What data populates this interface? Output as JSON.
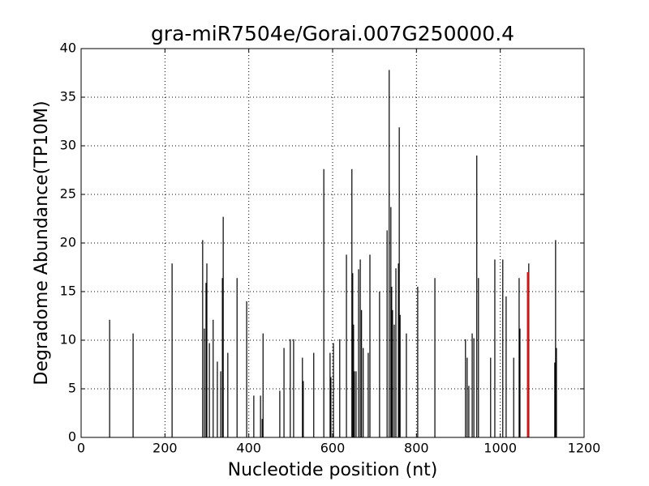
{
  "chart_data": {
    "type": "spike",
    "title": "gra-miR7504e/Gorai.007G250000.4",
    "xlabel": "Nucleotide position (nt)",
    "ylabel": "Degradome Abundance(TP10M)",
    "x": [
      68,
      124,
      217,
      290,
      294,
      298,
      300,
      306,
      315,
      325,
      333,
      337,
      339,
      350,
      372,
      395,
      412,
      428,
      432,
      434,
      474,
      484,
      499,
      507,
      528,
      530,
      555,
      579,
      594,
      596,
      602,
      617,
      633,
      646,
      648,
      650,
      652,
      656,
      662,
      666,
      669,
      673,
      685,
      689,
      712,
      730,
      735,
      739,
      741,
      743,
      747,
      751,
      757,
      759,
      761,
      776,
      803,
      844,
      917,
      921,
      925,
      933,
      937,
      944,
      948,
      977,
      987,
      1006,
      1014,
      1032,
      1045,
      1047,
      1068,
      1130,
      1132,
      1134
    ],
    "values": [
      12.1,
      10.7,
      17.9,
      20.3,
      11.2,
      15.9,
      17.9,
      9.7,
      12.1,
      7.8,
      6.8,
      16.4,
      22.7,
      8.7,
      16.4,
      14.0,
      4.3,
      4.3,
      1.9,
      10.7,
      4.8,
      9.2,
      10.1,
      10.1,
      8.2,
      5.8,
      8.7,
      27.6,
      8.7,
      6.2,
      9.7,
      10.1,
      18.8,
      27.6,
      16.9,
      11.6,
      6.8,
      6.8,
      17.3,
      18.3,
      13.1,
      9.2,
      8.7,
      18.8,
      15.0,
      21.3,
      37.8,
      23.7,
      15.5,
      13.1,
      11.6,
      17.4,
      17.9,
      31.9,
      12.6,
      10.7,
      15.5,
      16.4,
      10.1,
      8.2,
      5.3,
      10.7,
      10.2,
      29.0,
      16.4,
      8.2,
      18.3,
      18.3,
      14.5,
      8.2,
      16.4,
      11.2,
      17.9,
      7.7,
      20.3,
      9.2
    ],
    "color": "#000000",
    "highlight_x": 1066,
    "highlight_value": 17.0,
    "highlight_color": "#ff0000",
    "xlim": [
      0,
      1200
    ],
    "xticks": [
      0,
      200,
      400,
      600,
      800,
      1000,
      1200
    ],
    "ylim": [
      0,
      40
    ],
    "yticks": [
      0,
      5,
      10,
      15,
      20,
      25,
      30,
      35,
      40
    ],
    "grid": true
  }
}
